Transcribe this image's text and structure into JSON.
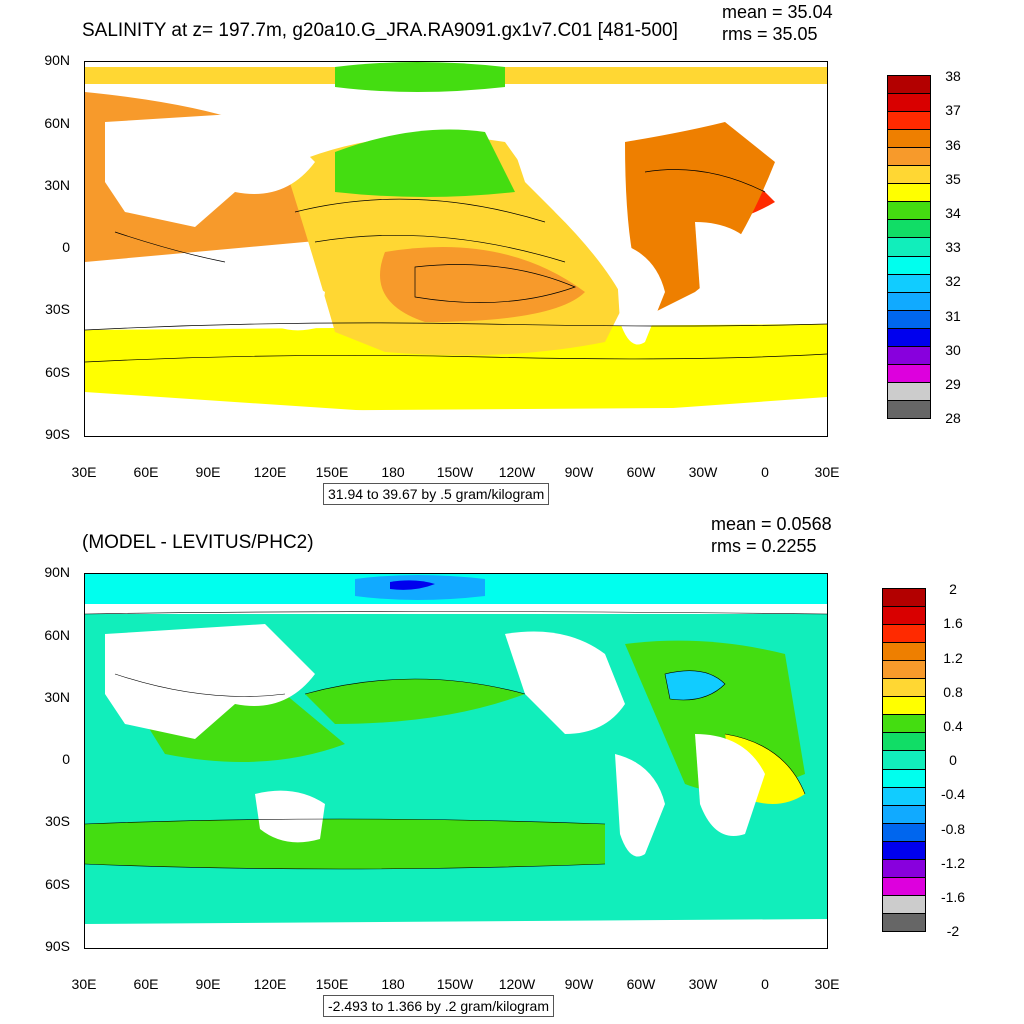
{
  "panels": [
    {
      "title": "SALINITY at z= 197.7m, g20a10.G_JRA.RA9091.gx1v7.C01 [481-500]",
      "mean_text": "mean = 35.04",
      "rms_text": "rms = 35.05",
      "range_text": "31.94 to 39.67 by .5 gram/kilogram",
      "y_ticks": [
        "90N",
        "60N",
        "30N",
        "0",
        "30S",
        "60S",
        "90S"
      ],
      "x_ticks": [
        "30E",
        "60E",
        "90E",
        "120E",
        "150E",
        "180",
        "150W",
        "120W",
        "90W",
        "60W",
        "30W",
        "0",
        "30E"
      ],
      "colorbar": {
        "labels": [
          "38",
          "37",
          "36",
          "35",
          "34",
          "33",
          "32",
          "31",
          "30",
          "29",
          "28"
        ],
        "colors": [
          "#b30000",
          "#d90000",
          "#ff2a00",
          "#ee7f00",
          "#f79a2b",
          "#ffd733",
          "#ffff00",
          "#44dd11",
          "#11dd66",
          "#11eebb",
          "#00ffee",
          "#11ccff",
          "#11aaff",
          "#0066ee",
          "#0000ee",
          "#8800dd",
          "#dd00dd",
          "#cccccc",
          "#666666"
        ]
      }
    },
    {
      "title": "(MODEL - LEVITUS/PHC2)",
      "mean_text": "mean = 0.0568",
      "rms_text": "rms = 0.2255",
      "range_text": "-2.493 to 1.366 by .2 gram/kilogram",
      "y_ticks": [
        "90N",
        "60N",
        "30N",
        "0",
        "30S",
        "60S",
        "90S"
      ],
      "x_ticks": [
        "30E",
        "60E",
        "90E",
        "120E",
        "150E",
        "180",
        "150W",
        "120W",
        "90W",
        "60W",
        "30W",
        "0",
        "30E"
      ],
      "colorbar": {
        "labels": [
          "2",
          "1.6",
          "1.2",
          "0.8",
          "0.4",
          "0",
          "-0.4",
          "-0.8",
          "-1.2",
          "-1.6",
          "-2"
        ],
        "colors": [
          "#b30000",
          "#d90000",
          "#ff2a00",
          "#ee7f00",
          "#f79a2b",
          "#ffd733",
          "#ffff00",
          "#44dd11",
          "#11dd66",
          "#11eebb",
          "#00ffee",
          "#11ccff",
          "#11aaff",
          "#0066ee",
          "#0000ee",
          "#8800dd",
          "#dd00dd",
          "#cccccc",
          "#666666"
        ]
      }
    }
  ]
}
